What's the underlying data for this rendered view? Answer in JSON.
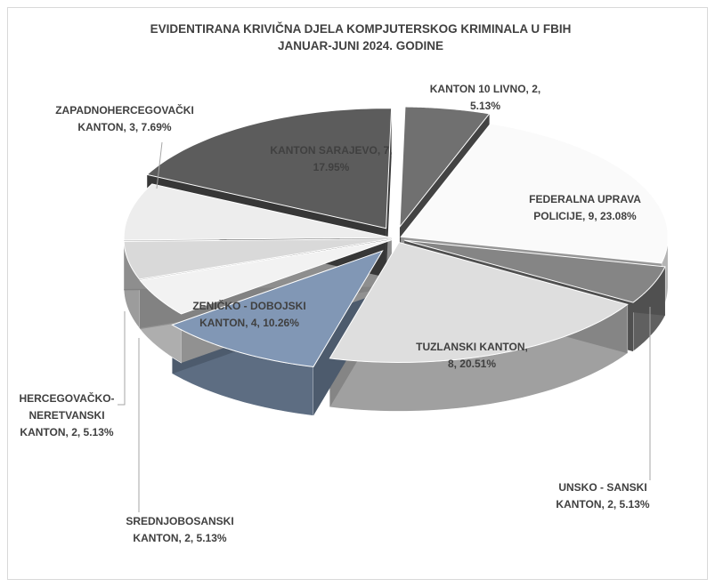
{
  "chart_data": {
    "type": "pie3d",
    "title": "EVIDENTIRANA KRIVIČNA DJELA  KOMPJUTERSKOG KRIMINALA U FBIH\nJANUAR-JUNI 2024. GODINE",
    "values": [
      2,
      9,
      2,
      8,
      4,
      2,
      2,
      3,
      7
    ],
    "value_labels": [
      "KANTON 10 LIVNO, 2,\n5.13%",
      "FEDERALNA UPRAVA\nPOLICIJE, 9, 23.08%",
      "UNSKO - SANSKI\nKANTON, 2, 5.13%",
      "TUZLANSKI KANTON,\n8, 20.51%",
      "ZENIČKO - DOBOJSKI\nKANTON, 4, 10.26%",
      "SREDNJOBOSANSKI\nKANTON, 2, 5.13%",
      "HERCEGOVAČKO-\nNERETVANSKI\nKANTON, 2, 5.13%",
      "ZAPADNOHERCEGOVAČKI\nKANTON, 3, 7.69%",
      "KANTON SARAJEVO, 7,\n17.95%"
    ],
    "colors": [
      "#707070",
      "#fafafa",
      "#858585",
      "#dedede",
      "#8197b5",
      "#f2f2f2",
      "#d9d9d9",
      "#ededed",
      "#5c5c5c"
    ]
  }
}
